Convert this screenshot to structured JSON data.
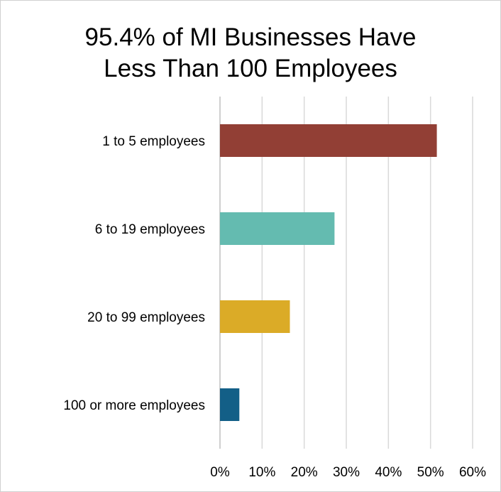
{
  "chart_data": {
    "type": "bar",
    "orientation": "horizontal",
    "title_lines": [
      "95.4% of MI Businesses Have",
      "Less Than 100 Employees"
    ],
    "categories": [
      "1 to 5 employees",
      "6 to 19 employees",
      "20 to 99 employees",
      "100 or more employees"
    ],
    "values": [
      51.5,
      27.2,
      16.6,
      4.6
    ],
    "unit": "%",
    "colors": [
      "#923f35",
      "#64bbb0",
      "#dbab27",
      "#135f87"
    ],
    "xlim": [
      0,
      60
    ],
    "x_ticks": [
      "0%",
      "10%",
      "20%",
      "30%",
      "40%",
      "50%",
      "60%"
    ],
    "grid": true,
    "legend": "none",
    "xlabel": "",
    "ylabel": ""
  }
}
